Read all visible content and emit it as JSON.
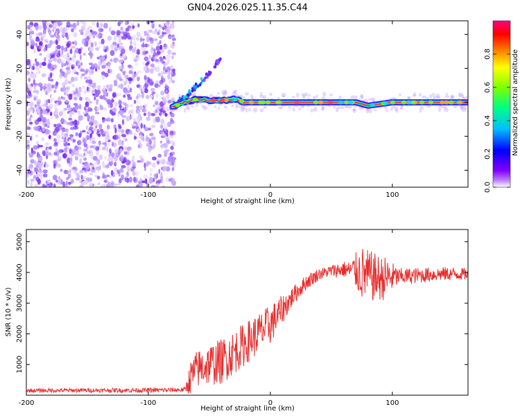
{
  "chart_data": [
    {
      "type": "heatmap",
      "title": "GN04.2026.025.11.35.C44",
      "xlabel": "Height of straight line (km)",
      "ylabel": "Frequency (Hz)",
      "xlim": [
        -200,
        162
      ],
      "ylim": [
        -50,
        48
      ],
      "xticks": [
        -200,
        -100,
        0,
        100
      ],
      "yticks": [
        -40,
        -20,
        0,
        20,
        40
      ],
      "colorbar": {
        "label": "Normalized spectral amplitude",
        "range": [
          0.0,
          1.0
        ],
        "ticks": [
          0.0,
          0.2,
          0.4,
          0.6,
          0.8
        ],
        "tick_labels": [
          "0.0",
          "0.2",
          "0.4",
          "0.6",
          "0.8"
        ],
        "colormap": [
          "#ffffff",
          "#8000ff",
          "#0000ff",
          "#00c0ff",
          "#00ff80",
          "#80ff00",
          "#ffff00",
          "#ff8000",
          "#ff0000",
          "#ff0080"
        ]
      },
      "noise_region": {
        "x_from": -200,
        "x_to": -79,
        "level": "low (0.0-0.1)"
      },
      "carrier_track": [
        {
          "x": -82,
          "f": -3
        },
        {
          "x": -70,
          "f": 0
        },
        {
          "x": -60,
          "f": 2
        },
        {
          "x": -50,
          "f": 1
        },
        {
          "x": -40,
          "f": 1
        },
        {
          "x": -30,
          "f": 2
        },
        {
          "x": -20,
          "f": 0
        },
        {
          "x": -10,
          "f": 0
        },
        {
          "x": 0,
          "f": 0
        },
        {
          "x": 20,
          "f": 0
        },
        {
          "x": 50,
          "f": 0
        },
        {
          "x": 60,
          "f": 0
        },
        {
          "x": 70,
          "f": 0
        },
        {
          "x": 80,
          "f": -2
        },
        {
          "x": 90,
          "f": -1
        },
        {
          "x": 100,
          "f": 0
        },
        {
          "x": 130,
          "f": 0
        },
        {
          "x": 160,
          "f": 0
        }
      ],
      "side_branch": [
        {
          "x": -80,
          "f": -2
        },
        {
          "x": -70,
          "f": 3
        },
        {
          "x": -60,
          "f": 10
        },
        {
          "x": -50,
          "f": 17
        },
        {
          "x": -45,
          "f": 22
        },
        {
          "x": -40,
          "f": 27
        }
      ]
    },
    {
      "type": "line",
      "xlabel": "Height of straight line (km)",
      "ylabel": "SNR (10 * v/v)",
      "xlim": [
        -200,
        162
      ],
      "ylim": [
        0,
        5400
      ],
      "xticks": [
        -200,
        -100,
        0,
        100
      ],
      "yticks": [
        1000,
        2000,
        3000,
        4000,
        5000
      ],
      "series": [
        {
          "name": "SNR",
          "color": "#e82c2c",
          "points": [
            {
              "x": -200,
              "y": 150
            },
            {
              "x": -150,
              "y": 160
            },
            {
              "x": -100,
              "y": 160
            },
            {
              "x": -80,
              "y": 170
            },
            {
              "x": -70,
              "y": 180
            },
            {
              "x": -65,
              "y": 600
            },
            {
              "x": -60,
              "y": 850
            },
            {
              "x": -50,
              "y": 1000
            },
            {
              "x": -40,
              "y": 1100
            },
            {
              "x": -30,
              "y": 1400
            },
            {
              "x": -20,
              "y": 1700
            },
            {
              "x": -10,
              "y": 2000
            },
            {
              "x": 0,
              "y": 2300
            },
            {
              "x": 10,
              "y": 2800
            },
            {
              "x": 20,
              "y": 3300
            },
            {
              "x": 30,
              "y": 3700
            },
            {
              "x": 40,
              "y": 3950
            },
            {
              "x": 50,
              "y": 4050
            },
            {
              "x": 60,
              "y": 4100
            },
            {
              "x": 70,
              "y": 4050
            },
            {
              "x": 80,
              "y": 3900
            },
            {
              "x": 90,
              "y": 3800
            },
            {
              "x": 100,
              "y": 3850
            },
            {
              "x": 120,
              "y": 3900
            },
            {
              "x": 140,
              "y": 3950
            },
            {
              "x": 162,
              "y": 3950
            }
          ],
          "jitter_envelope": [
            {
              "x": -200,
              "amp": 60
            },
            {
              "x": -70,
              "amp": 80
            },
            {
              "x": -65,
              "amp": 600
            },
            {
              "x": -40,
              "amp": 750
            },
            {
              "x": 0,
              "amp": 650
            },
            {
              "x": 20,
              "amp": 300
            },
            {
              "x": 45,
              "amp": 180
            },
            {
              "x": 65,
              "amp": 300
            },
            {
              "x": 75,
              "amp": 900
            },
            {
              "x": 95,
              "amp": 700
            },
            {
              "x": 105,
              "amp": 280
            },
            {
              "x": 162,
              "amp": 200
            }
          ]
        }
      ]
    }
  ]
}
